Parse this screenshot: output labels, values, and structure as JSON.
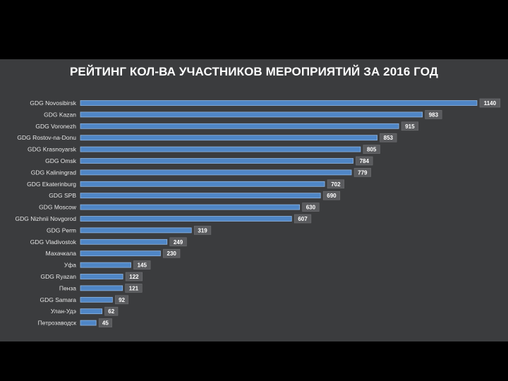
{
  "chart_data": {
    "type": "bar",
    "orientation": "horizontal",
    "title": "РЕЙТИНГ КОЛ-ВА УЧАСТНИКОВ МЕРОПРИЯТИЙ ЗА 2016 ГОД",
    "categories": [
      "GDG Novosibirsk",
      "GDG Kazan",
      "GDG Voronezh",
      "GDG Rostov-na-Donu",
      "GDG Krasnoyarsk",
      "GDG Omsk",
      "GDG Kaliningrad",
      "GDG Ekaterinburg",
      "GDG SPB",
      "GDG Moscow",
      "GDG Nizhnii Novgorod",
      "GDG Perm",
      "GDG Vladivostok",
      "Махачкала",
      "Уфа",
      "GDG Ryazan",
      "Пенза",
      "GDG Samara",
      "Улан-Удэ",
      "Петрозаводск"
    ],
    "values": [
      1140,
      983,
      915,
      853,
      805,
      784,
      779,
      702,
      690,
      630,
      607,
      319,
      249,
      230,
      145,
      122,
      121,
      92,
      62,
      45
    ],
    "data_labels": true,
    "xlim": [
      0,
      1140
    ],
    "grid": false,
    "legend": "none",
    "colors": {
      "bar": "#4f86c6",
      "bar_edge": "#8fb6e2",
      "label_bg": "#5a5b5e",
      "background": "#3b3c3e"
    }
  }
}
